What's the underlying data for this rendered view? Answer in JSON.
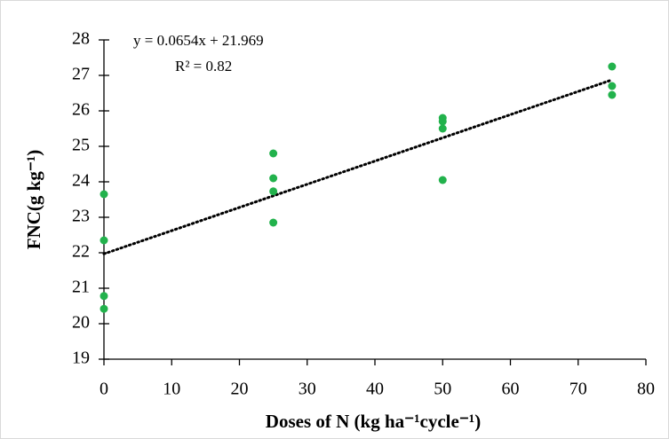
{
  "chart_data": {
    "type": "scatter",
    "x_label": "Doses of N (kg ha⁻¹cycle⁻¹)",
    "y_label": "FNC(g kg⁻¹)",
    "equation": "y = 0.0654x + 21.969",
    "r_squared": "R² = 0.82",
    "series": [
      {
        "color": "#22b24c",
        "x": [
          0,
          0,
          0,
          0,
          25,
          25,
          25,
          25,
          50,
          50,
          50,
          50,
          75,
          75,
          75
        ],
        "values": [
          23.65,
          22.35,
          20.78,
          20.42,
          24.8,
          24.1,
          23.73,
          22.85,
          25.8,
          25.7,
          25.5,
          24.05,
          27.25,
          26.7,
          26.45
        ]
      }
    ],
    "trendline": {
      "slope": 0.0654,
      "intercept": 21.969,
      "x_range": [
        0,
        75
      ],
      "color": "#000000"
    },
    "xlim": [
      0,
      80
    ],
    "xticks": [
      0,
      10,
      20,
      30,
      40,
      50,
      60,
      70,
      80
    ],
    "ylim": [
      19,
      28
    ],
    "yticks": [
      19,
      20,
      21,
      22,
      23,
      24,
      25,
      26,
      27,
      28
    ]
  }
}
